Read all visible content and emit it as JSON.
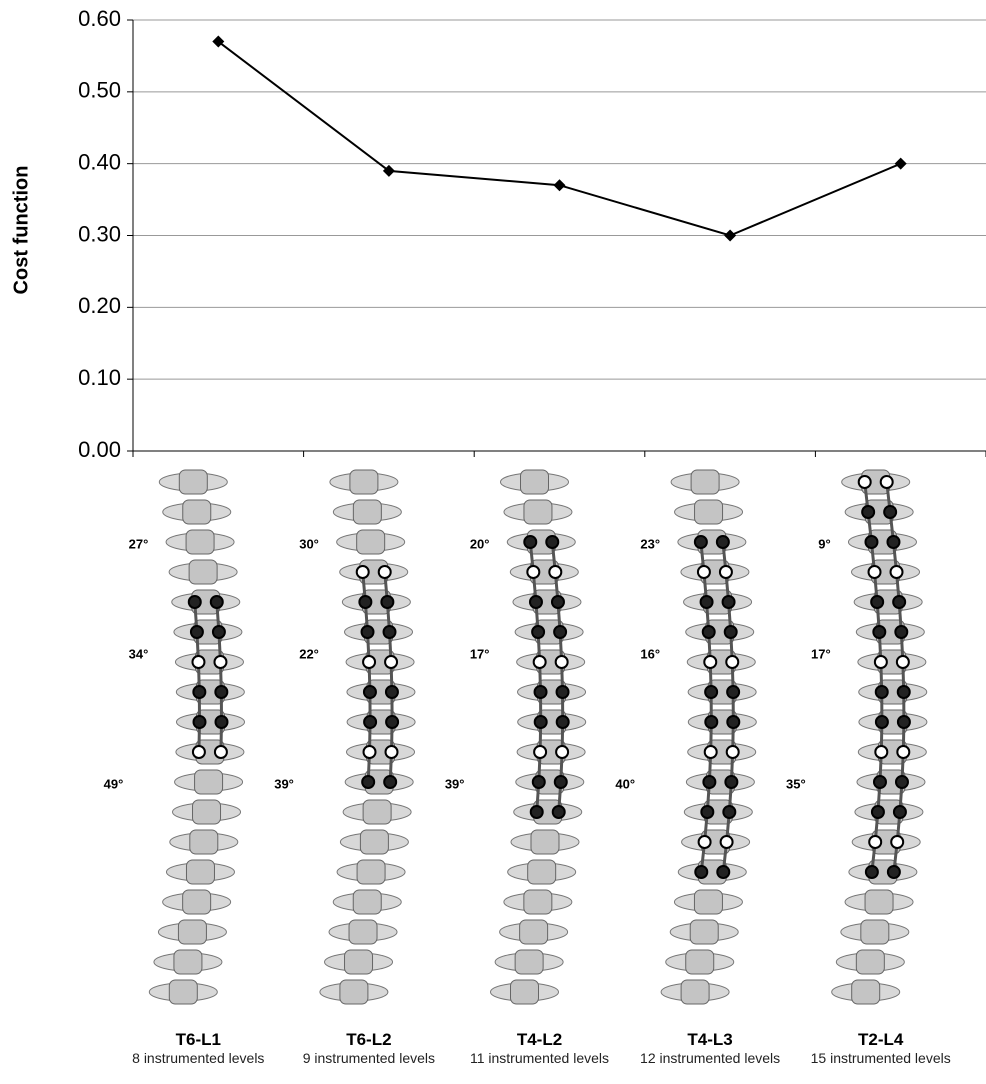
{
  "chart_data": {
    "type": "line",
    "y_label": "Cost function",
    "categories": [
      "T6-L1",
      "T6-L2",
      "T4-L2",
      "T4-L3",
      "T2-L4"
    ],
    "values": [
      0.57,
      0.39,
      0.37,
      0.3,
      0.4
    ],
    "color": "#000000",
    "ylim": [
      0,
      0.6
    ],
    "yticks": [
      {
        "value": 0,
        "label": "0.00"
      },
      {
        "value": 0.1,
        "label": "0.10"
      },
      {
        "value": 0.2,
        "label": "0.20"
      },
      {
        "value": 0.3,
        "label": "0.30"
      },
      {
        "value": 0.4,
        "label": "0.40"
      },
      {
        "value": 0.5,
        "label": "0.50"
      },
      {
        "value": 0.6,
        "label": "0.60"
      }
    ],
    "grid": true
  },
  "spines": [
    {
      "levels": "8 instrumented levels",
      "angles": [
        "27°",
        "34°",
        "49°"
      ]
    },
    {
      "levels": "9 instrumented levels",
      "angles": [
        "30°",
        "22°",
        "39°"
      ]
    },
    {
      "levels": "11 instrumented levels",
      "angles": [
        "20°",
        "17°",
        "39°"
      ]
    },
    {
      "levels": "12 instrumented levels",
      "angles": [
        "23°",
        "16°",
        "40°"
      ]
    },
    {
      "levels": "15 instrumented levels",
      "angles": [
        "9°",
        "17°",
        "35°"
      ]
    }
  ]
}
